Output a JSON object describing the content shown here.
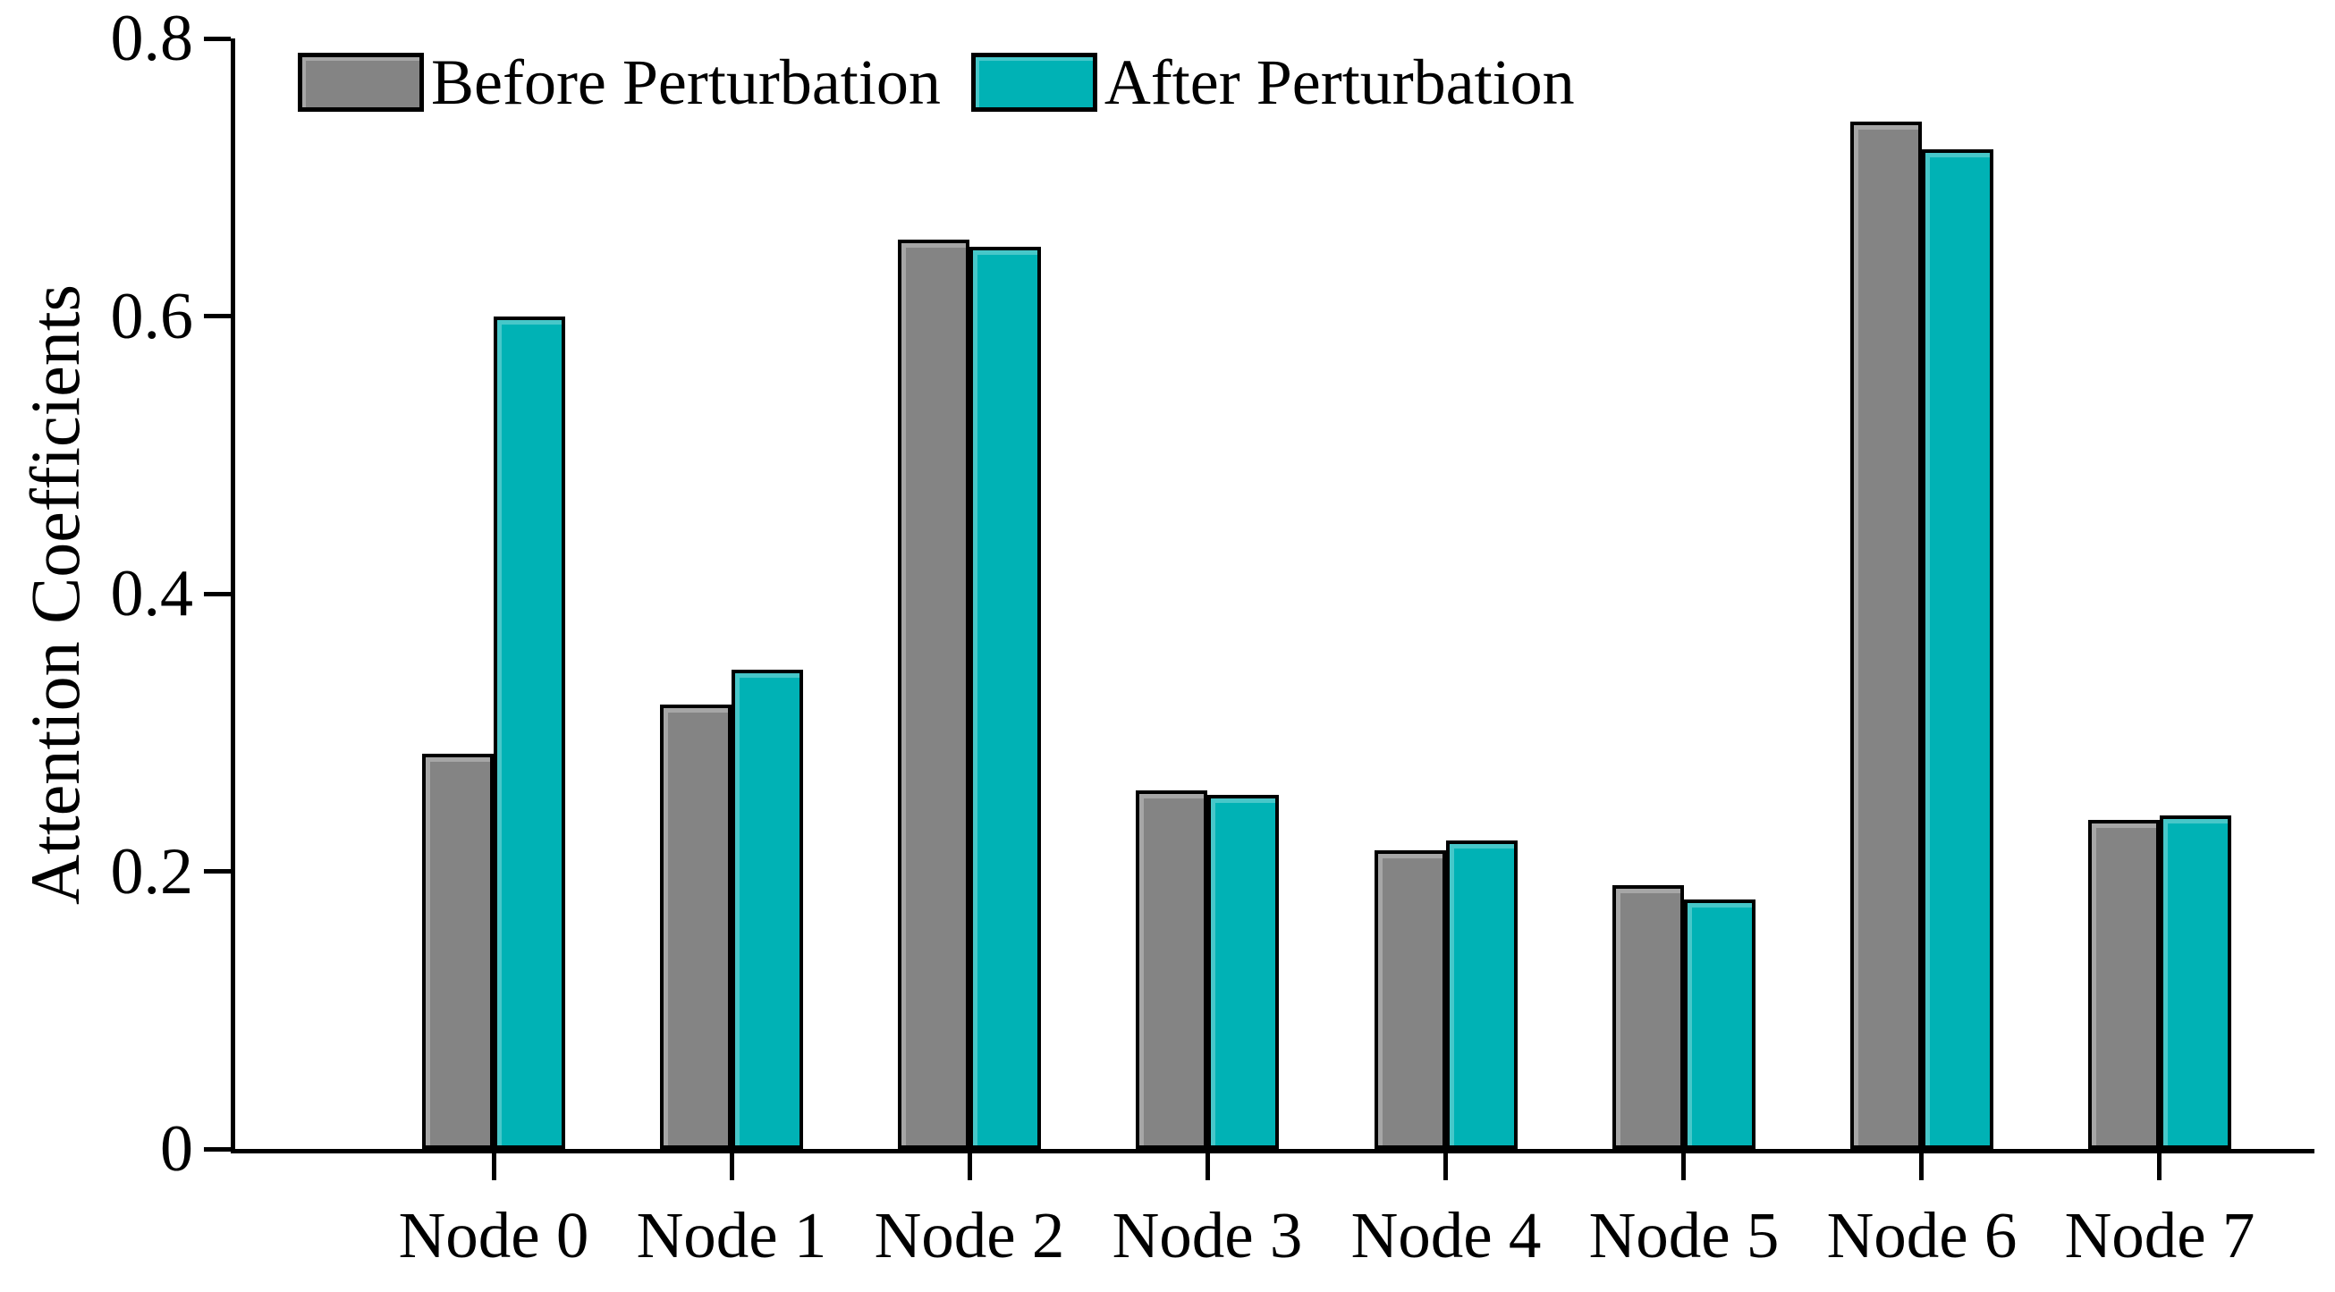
{
  "chart_data": {
    "type": "bar",
    "title": "",
    "categories": [
      "Node 0",
      "Node 1",
      "Node 2",
      "Node 3",
      "Node 4",
      "Node 5",
      "Node 6",
      "Node 7"
    ],
    "series": [
      {
        "name": "Before Perturbation",
        "color": "#848484",
        "values": [
          0.285,
          0.32,
          0.655,
          0.258,
          0.215,
          0.19,
          0.74,
          0.237
        ]
      },
      {
        "name": "After Perturbation",
        "color": "#00b2b5",
        "values": [
          0.6,
          0.345,
          0.65,
          0.255,
          0.222,
          0.18,
          0.72,
          0.24
        ]
      }
    ],
    "xlabel": "",
    "ylabel": "Attention Coefficients",
    "ylim": [
      0,
      0.8
    ],
    "yticks": [
      0,
      0.2,
      0.4,
      0.6,
      0.8
    ],
    "ytick_labels": [
      "0",
      "0.2",
      "0.4",
      "0.6",
      "0.8"
    ],
    "legend_position": "top-left inside",
    "grid": false,
    "bar_edge_color": "#000000",
    "axis_color": "#000000"
  }
}
